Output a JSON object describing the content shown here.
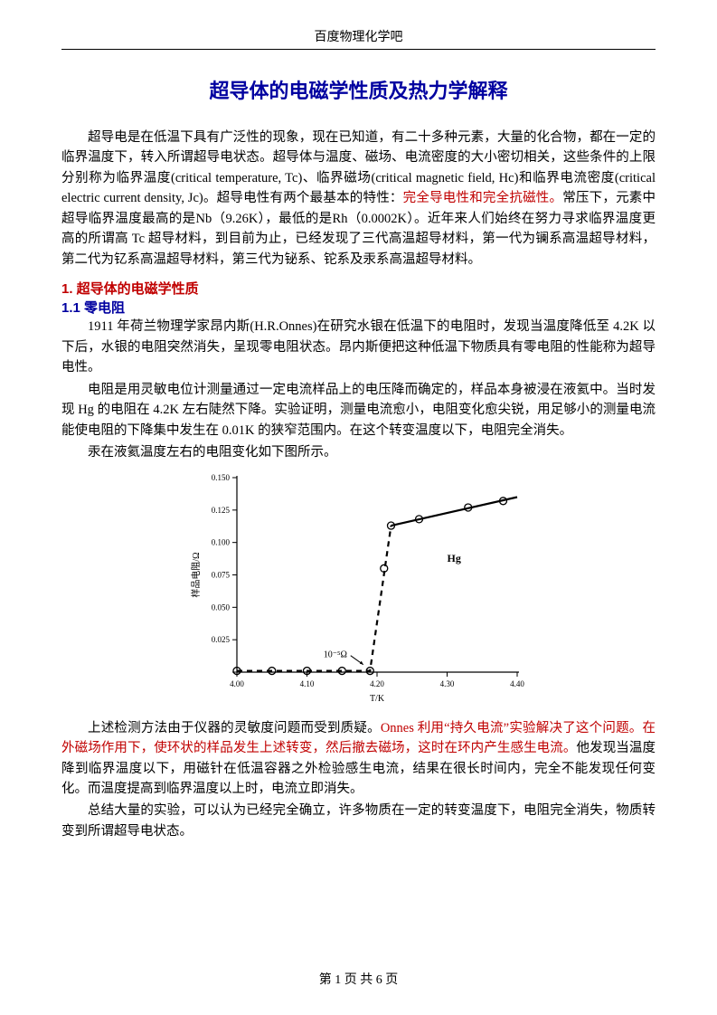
{
  "header": {
    "source": "百度物理化学吧"
  },
  "title": "超导体的电磁学性质及热力学解释",
  "intro": {
    "p1a": "超导电是在低温下具有广泛性的现象，现在已知道，有二十多种元素，大量的化合物，都在一定的临界温度下，转入所谓超导电状态。超导体与温度、磁场、电流密度的大小密切相关，这些条件的上限分别称为临界温度(critical temperature, Tc)、临界磁场(critical magnetic field, Hc)和临界电流密度(critical electric current density, Jc)。超导电性有两个最基本的特性：",
    "p1b": "完全导电性和完全抗磁性。",
    "p1c": "常压下，元素中超导临界温度最高的是Nb（9.26K），最低的是Rh（0.0002K）。近年来人们始终在努力寻求临界温度更高的所谓高 Tc 超导材料，到目前为止，已经发现了三代高温超导材料，第一代为镧系高温超导材料，第二代为钇系高温超导材料，第三代为铋系、铊系及汞系高温超导材料。"
  },
  "section1": {
    "h1": "1. 超导体的电磁学性质",
    "h2": "1.1 零电阻",
    "p1": "1911 年荷兰物理学家昂内斯(H.R.Onnes)在研究水银在低温下的电阻时，发现当温度降低至 4.2K 以下后，水银的电阻突然消失，呈现零电阻状态。昂内斯便把这种低温下物质具有零电阻的性能称为超导电性。",
    "p2": "电阻是用灵敏电位计测量通过一定电流样品上的电压降而确定的，样品本身被浸在液氦中。当时发现 Hg 的电阻在 4.2K 左右陡然下降。实验证明，测量电流愈小，电阻变化愈尖锐，用足够小的测量电流能使电阻的下降集中发生在 0.01K 的狭窄范围内。在这个转变温度以下，电阻完全消失。",
    "p3": "汞在液氦温度左右的电阻变化如下图所示。",
    "p4a": "上述检测方法由于仪器的灵敏度问题而受到质疑。",
    "p4b": "Onnes 利用“持久电流”实验解决了这个问题。在外磁场作用下，使环状的样品发生上述转变，然后撤去磁场，这时在环内产生感生电流。",
    "p4c": "他发现当温度降到临界温度以下，用磁针在低温容器之外检验感生电流，结果在很长时间内，完全不能发现任何变化。而温度提高到临界温度以上时，电流立即消失。",
    "p5": "总结大量的实验，可以认为已经完全确立，许多物质在一定的转变温度下，电阻完全消失，物质转变到所谓超导电状态。"
  },
  "figure": {
    "type": "scatter-line",
    "xlabel": "T/K",
    "ylabel": "样品电阻/Ω",
    "annotation_series": "Hg",
    "annotation_arrow": "10⁻⁵Ω",
    "xlim": [
      4.0,
      4.4
    ],
    "ylim": [
      0,
      0.15
    ],
    "xticks": [
      4.0,
      4.1,
      4.2,
      4.3,
      4.4
    ],
    "yticks": [
      0.0,
      0.025,
      0.05,
      0.075,
      0.1,
      0.125,
      0.15
    ],
    "ytick_labels": [
      "",
      "0.025",
      "0.050",
      "0.075",
      "0.100",
      "0.125",
      "0.150"
    ],
    "scatter_points_x": [
      4.0,
      4.05,
      4.1,
      4.15,
      4.19,
      4.21,
      4.22,
      4.26,
      4.33,
      4.38
    ],
    "scatter_points_y": [
      0.001,
      0.001,
      0.001,
      0.001,
      0.001,
      0.08,
      0.113,
      0.118,
      0.127,
      0.132
    ],
    "line_points_x": [
      4.0,
      4.19,
      4.22,
      4.4
    ],
    "line_points_y": [
      0.001,
      0.001,
      0.113,
      0.135
    ],
    "line_solid_from_index": 2,
    "marker_color": "#000000",
    "marker_style": "open-circle",
    "marker_size": 4,
    "line_color": "#000000",
    "line_width": 2.2,
    "axis_color": "#000000",
    "text_color": "#000000",
    "background_color": "#ffffff",
    "axis_fontsize": 10,
    "tick_fontsize": 9
  },
  "footer": {
    "page_current": "1",
    "page_total": "6",
    "template": "第 {c} 页 共 {t} 页"
  }
}
